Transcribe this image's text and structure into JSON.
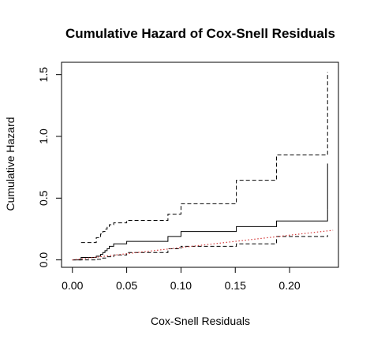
{
  "chart_data": {
    "type": "line",
    "title": "Cumulative Hazard of Cox-Snell Residuals",
    "xlabel": "Cox-Snell Residuals",
    "ylabel": "Cumulative Hazard",
    "xlim": [
      -0.01,
      0.245
    ],
    "ylim": [
      -0.06,
      1.6
    ],
    "xticks": [
      0.0,
      0.05,
      0.1,
      0.15,
      0.2
    ],
    "xtick_labels": [
      "0.00",
      "0.05",
      "0.10",
      "0.15",
      "0.20"
    ],
    "yticks": [
      0.0,
      0.5,
      1.0,
      1.5
    ],
    "ytick_labels": [
      "0.0",
      "0.5",
      "1.0",
      "1.5"
    ],
    "grid": false,
    "legend": "none",
    "series": [
      {
        "style": "solid-step",
        "color": "#000000",
        "x": [
          0.0,
          0.008,
          0.022,
          0.026,
          0.028,
          0.03,
          0.032,
          0.034,
          0.038,
          0.05,
          0.088,
          0.1,
          0.151,
          0.188,
          0.235
        ],
        "y": [
          0.0,
          0.02,
          0.03,
          0.045,
          0.06,
          0.075,
          0.09,
          0.11,
          0.13,
          0.15,
          0.19,
          0.23,
          0.27,
          0.315,
          0.41
        ]
      },
      {
        "style": "solid-step-end",
        "color": "#000000",
        "x": [
          0.235,
          0.235
        ],
        "y": [
          0.41,
          0.78
        ]
      },
      {
        "style": "dashed-step",
        "color": "#000000",
        "x": [
          0.008,
          0.022,
          0.026,
          0.028,
          0.03,
          0.032,
          0.034,
          0.038,
          0.05,
          0.088,
          0.1,
          0.151,
          0.188,
          0.235
        ],
        "y": [
          0.14,
          0.18,
          0.21,
          0.23,
          0.25,
          0.27,
          0.285,
          0.3,
          0.32,
          0.37,
          0.455,
          0.645,
          0.85,
          1.52
        ]
      },
      {
        "style": "dashed-step",
        "color": "#000000",
        "x": [
          0.0,
          0.022,
          0.028,
          0.032,
          0.038,
          0.05,
          0.088,
          0.1,
          0.151,
          0.188,
          0.235
        ],
        "y": [
          0.0,
          0.005,
          0.015,
          0.025,
          0.04,
          0.06,
          0.09,
          0.11,
          0.13,
          0.19,
          0.2
        ]
      },
      {
        "style": "dotted-reference",
        "color": "#d43a3a",
        "x": [
          0.0,
          0.24
        ],
        "y": [
          0.0,
          0.24
        ]
      }
    ]
  }
}
